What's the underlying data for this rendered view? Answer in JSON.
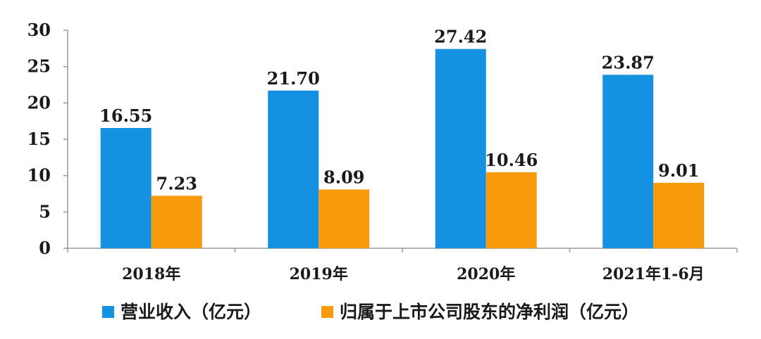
{
  "chart_data": {
    "type": "bar",
    "title": "",
    "xlabel": "",
    "ylabel": "",
    "categories": [
      "2018年",
      "2019年",
      "2020年",
      "2021年1-6月"
    ],
    "ylim": [
      0,
      30
    ],
    "yticks": [
      "0",
      "5",
      "10",
      "15",
      "20",
      "25",
      "30"
    ],
    "grid": false,
    "legend_position": "bottom",
    "series": [
      {
        "name": "营业收入（亿元）",
        "color": "#1491e0",
        "values": [
          16.55,
          21.7,
          27.42,
          23.87
        ],
        "labels": [
          "16.55",
          "21.70",
          "27.42",
          "23.87"
        ]
      },
      {
        "name": "归属于上市公司股东的净利润（亿元）",
        "color": "#f79a0c",
        "values": [
          7.23,
          8.09,
          10.46,
          9.01
        ],
        "labels": [
          "7.23",
          "8.09",
          "10.46",
          "9.01"
        ]
      }
    ]
  }
}
